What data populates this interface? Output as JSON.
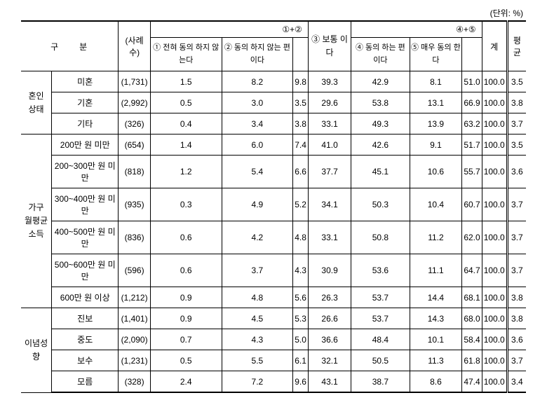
{
  "unit_label": "(단위: %)",
  "headers": {
    "gubun": "구분",
    "sample": "(사례수)",
    "c1": "①\n전혀\n동의\n하지\n않는다",
    "c2": "②\n동의\n하지\n않는\n편이다",
    "c12": "①+②",
    "c3": "③\n보통\n이다",
    "c4": "④\n동의\n하는\n편이다",
    "c5": "⑤\n매우\n동의\n한다",
    "c45": "④+⑤",
    "total": "계",
    "avg": "평균"
  },
  "groups": [
    {
      "name": "혼인\n상태",
      "rows": [
        {
          "label": "미혼",
          "sample": "(1,731)",
          "v": [
            "1.5",
            "8.2",
            "9.8",
            "39.3",
            "42.9",
            "8.1",
            "51.0",
            "100.0",
            "3.5"
          ]
        },
        {
          "label": "기혼",
          "sample": "(2,992)",
          "v": [
            "0.5",
            "3.0",
            "3.5",
            "29.6",
            "53.8",
            "13.1",
            "66.9",
            "100.0",
            "3.8"
          ]
        },
        {
          "label": "기타",
          "sample": "(326)",
          "v": [
            "0.4",
            "3.4",
            "3.8",
            "33.1",
            "49.3",
            "13.9",
            "63.2",
            "100.0",
            "3.7"
          ]
        }
      ]
    },
    {
      "name": "가구\n월평균\n소득",
      "rows": [
        {
          "label": "200만 원 미만",
          "sample": "(654)",
          "v": [
            "1.4",
            "6.0",
            "7.4",
            "41.0",
            "42.6",
            "9.1",
            "51.7",
            "100.0",
            "3.5"
          ]
        },
        {
          "label": "200~300만 원 미만",
          "sample": "(818)",
          "v": [
            "1.2",
            "5.4",
            "6.6",
            "37.7",
            "45.1",
            "10.6",
            "55.7",
            "100.0",
            "3.6"
          ]
        },
        {
          "label": "300~400만 원 미만",
          "sample": "(935)",
          "v": [
            "0.3",
            "4.9",
            "5.2",
            "34.1",
            "50.3",
            "10.4",
            "60.7",
            "100.0",
            "3.7"
          ]
        },
        {
          "label": "400~500만 원 미만",
          "sample": "(836)",
          "v": [
            "0.6",
            "4.2",
            "4.8",
            "33.1",
            "50.8",
            "11.2",
            "62.0",
            "100.0",
            "3.7"
          ]
        },
        {
          "label": "500~600만 원 미만",
          "sample": "(596)",
          "v": [
            "0.6",
            "3.7",
            "4.3",
            "30.9",
            "53.6",
            "11.1",
            "64.7",
            "100.0",
            "3.7"
          ]
        },
        {
          "label": "600만 원 이상",
          "sample": "(1,212)",
          "v": [
            "0.9",
            "4.8",
            "5.6",
            "26.3",
            "53.7",
            "14.4",
            "68.1",
            "100.0",
            "3.8"
          ]
        }
      ]
    },
    {
      "name": "이념성향",
      "rows": [
        {
          "label": "진보",
          "sample": "(1,401)",
          "v": [
            "0.9",
            "4.5",
            "5.3",
            "26.6",
            "53.7",
            "14.3",
            "68.0",
            "100.0",
            "3.8"
          ]
        },
        {
          "label": "중도",
          "sample": "(2,090)",
          "v": [
            "0.7",
            "4.3",
            "5.0",
            "36.6",
            "48.4",
            "10.1",
            "58.4",
            "100.0",
            "3.6"
          ]
        },
        {
          "label": "보수",
          "sample": "(1,231)",
          "v": [
            "0.5",
            "5.5",
            "6.1",
            "32.1",
            "50.5",
            "11.3",
            "61.8",
            "100.0",
            "3.7"
          ]
        },
        {
          "label": "모름",
          "sample": "(328)",
          "v": [
            "2.4",
            "7.2",
            "9.6",
            "43.1",
            "38.7",
            "8.6",
            "47.4",
            "100.0",
            "3.4"
          ]
        }
      ]
    }
  ]
}
